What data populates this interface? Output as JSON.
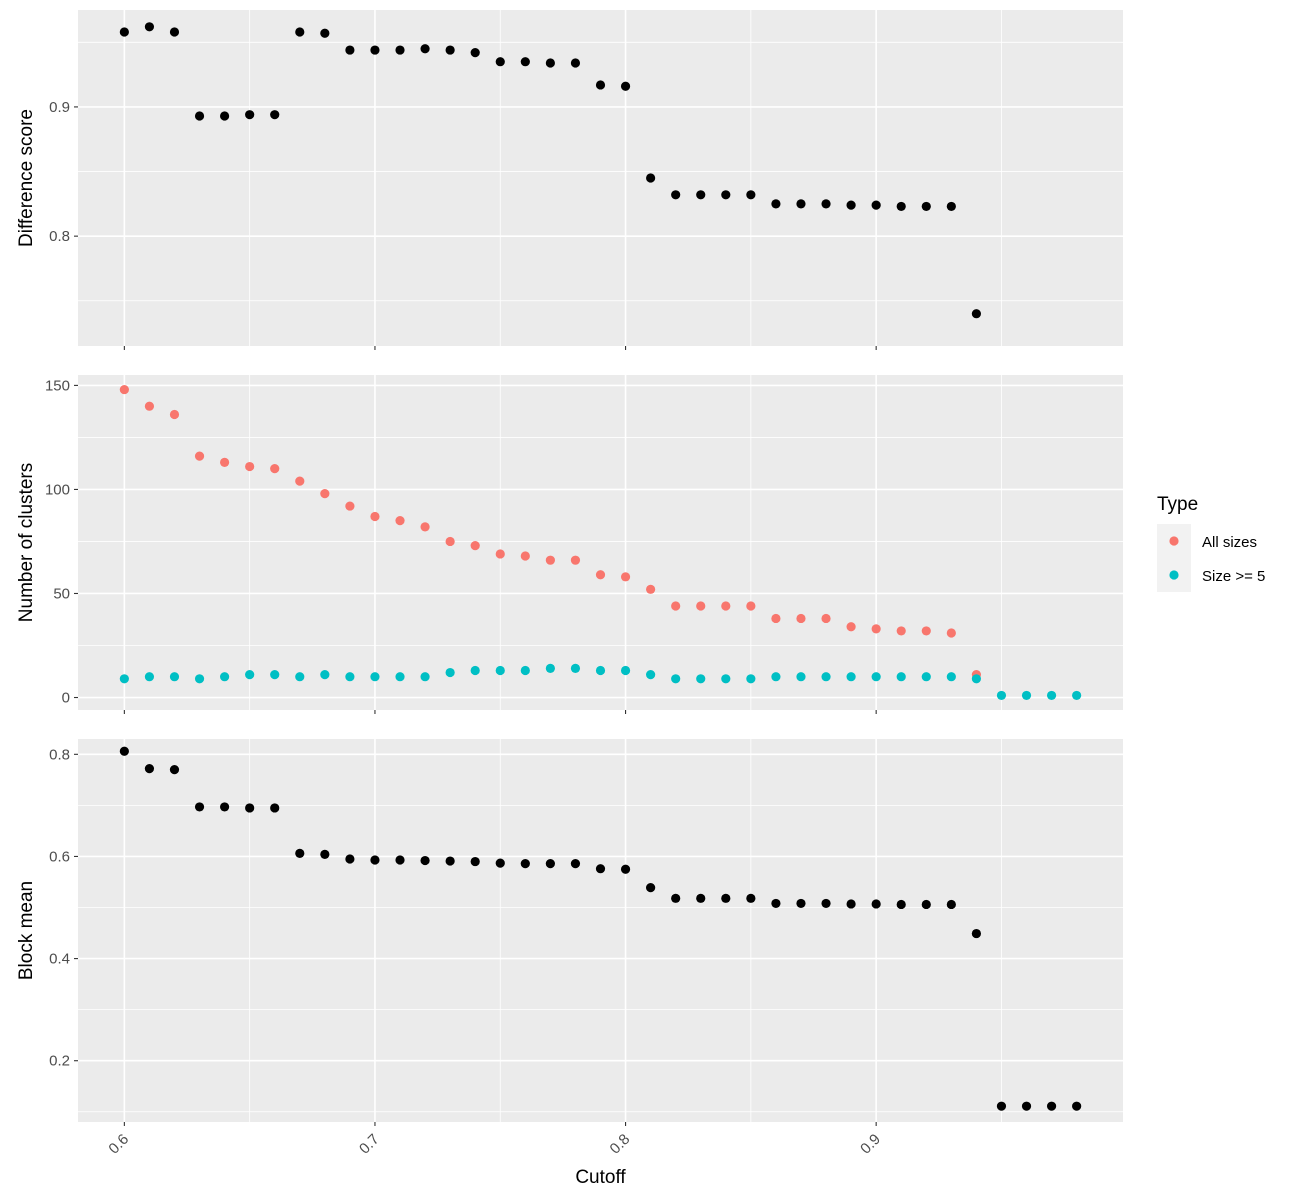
{
  "chart_data": [
    {
      "type": "scatter",
      "panel": "top",
      "ylabel": "Difference score",
      "yticks": [
        0.8,
        0.9
      ],
      "ylim": [
        0.715,
        0.975
      ],
      "xlim": [
        0.5815,
        0.9985
      ],
      "color": "#000000",
      "series": [
        {
          "x": [
            0.6,
            0.61,
            0.62,
            0.63,
            0.64,
            0.65,
            0.66,
            0.67,
            0.68,
            0.69,
            0.7,
            0.71,
            0.72,
            0.73,
            0.74,
            0.75,
            0.76,
            0.77,
            0.78,
            0.79,
            0.8,
            0.81,
            0.82,
            0.83,
            0.84,
            0.85,
            0.86,
            0.87,
            0.88,
            0.89,
            0.9,
            0.91,
            0.92,
            0.93,
            0.94
          ],
          "y": [
            0.958,
            0.962,
            0.958,
            0.893,
            0.893,
            0.894,
            0.894,
            0.958,
            0.957,
            0.944,
            0.944,
            0.944,
            0.945,
            0.944,
            0.942,
            0.935,
            0.935,
            0.934,
            0.934,
            0.917,
            0.916,
            0.845,
            0.832,
            0.832,
            0.832,
            0.832,
            0.825,
            0.825,
            0.825,
            0.824,
            0.824,
            0.823,
            0.823,
            0.823,
            0.74
          ]
        }
      ]
    },
    {
      "type": "scatter",
      "panel": "middle",
      "ylabel": "Number of clusters",
      "yticks": [
        0,
        50,
        100,
        150
      ],
      "ylim": [
        -6,
        155
      ],
      "xlim": [
        0.5815,
        0.9985
      ],
      "series": [
        {
          "name": "All sizes",
          "color": "#F8766D",
          "x": [
            0.6,
            0.61,
            0.62,
            0.63,
            0.64,
            0.65,
            0.66,
            0.67,
            0.68,
            0.69,
            0.7,
            0.71,
            0.72,
            0.73,
            0.74,
            0.75,
            0.76,
            0.77,
            0.78,
            0.79,
            0.8,
            0.81,
            0.82,
            0.83,
            0.84,
            0.85,
            0.86,
            0.87,
            0.88,
            0.89,
            0.9,
            0.91,
            0.92,
            0.93,
            0.94
          ],
          "y": [
            148,
            140,
            136,
            116,
            113,
            111,
            110,
            104,
            98,
            92,
            87,
            85,
            82,
            75,
            73,
            69,
            68,
            66,
            66,
            59,
            58,
            52,
            44,
            44,
            44,
            44,
            38,
            38,
            38,
            34,
            33,
            32,
            32,
            31,
            11
          ]
        },
        {
          "name": "Size >= 5",
          "color": "#00BFC4",
          "x": [
            0.6,
            0.61,
            0.62,
            0.63,
            0.64,
            0.65,
            0.66,
            0.67,
            0.68,
            0.69,
            0.7,
            0.71,
            0.72,
            0.73,
            0.74,
            0.75,
            0.76,
            0.77,
            0.78,
            0.79,
            0.8,
            0.81,
            0.82,
            0.83,
            0.84,
            0.85,
            0.86,
            0.87,
            0.88,
            0.89,
            0.9,
            0.91,
            0.92,
            0.93,
            0.94,
            0.95,
            0.96,
            0.97,
            0.98
          ],
          "y": [
            9,
            10,
            10,
            9,
            10,
            11,
            11,
            10,
            11,
            10,
            10,
            10,
            10,
            12,
            13,
            13,
            13,
            14,
            14,
            13,
            13,
            11,
            9,
            9,
            9,
            9,
            10,
            10,
            10,
            10,
            10,
            10,
            10,
            10,
            9,
            1,
            1,
            1,
            1
          ]
        }
      ]
    },
    {
      "type": "scatter",
      "panel": "bottom",
      "ylabel": "Block mean",
      "xlabel": "Cutoff",
      "yticks": [
        0.2,
        0.4,
        0.6,
        0.8
      ],
      "ylim": [
        0.08,
        0.83
      ],
      "xlim": [
        0.5815,
        0.9985
      ],
      "xticks": [
        0.6,
        0.7,
        0.8,
        0.9
      ],
      "color": "#000000",
      "series": [
        {
          "x": [
            0.6,
            0.61,
            0.62,
            0.63,
            0.64,
            0.65,
            0.66,
            0.67,
            0.68,
            0.69,
            0.7,
            0.71,
            0.72,
            0.73,
            0.74,
            0.75,
            0.76,
            0.77,
            0.78,
            0.79,
            0.8,
            0.81,
            0.82,
            0.83,
            0.84,
            0.85,
            0.86,
            0.87,
            0.88,
            0.89,
            0.9,
            0.91,
            0.92,
            0.93,
            0.94,
            0.95,
            0.96,
            0.97,
            0.98
          ],
          "y": [
            0.806,
            0.772,
            0.77,
            0.697,
            0.697,
            0.695,
            0.695,
            0.606,
            0.604,
            0.595,
            0.593,
            0.593,
            0.592,
            0.591,
            0.59,
            0.587,
            0.586,
            0.586,
            0.586,
            0.576,
            0.575,
            0.539,
            0.518,
            0.518,
            0.518,
            0.518,
            0.508,
            0.508,
            0.508,
            0.507,
            0.507,
            0.506,
            0.506,
            0.506,
            0.449,
            0.111,
            0.111,
            0.111,
            0.111
          ]
        }
      ]
    }
  ],
  "legend": {
    "title": "Type",
    "items": [
      {
        "label": "All sizes",
        "color": "#F8766D"
      },
      {
        "label": "Size >= 5",
        "color": "#00BFC4"
      }
    ]
  }
}
